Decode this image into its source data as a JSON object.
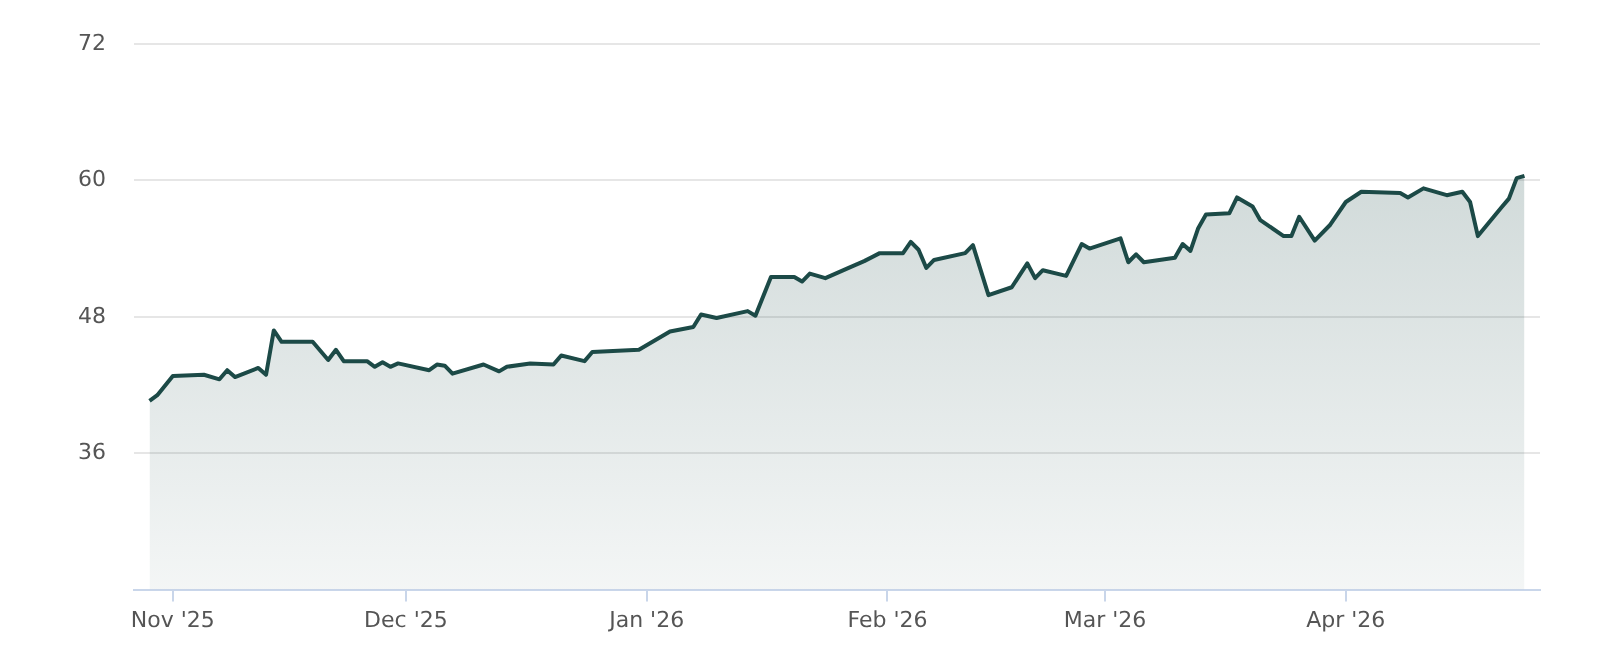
{
  "chart_data": {
    "type": "area",
    "x": [
      "2025-10-29",
      "2025-10-30",
      "2025-11-01",
      "2025-11-05",
      "2025-11-07",
      "2025-11-08",
      "2025-11-09",
      "2025-11-12",
      "2025-11-13",
      "2025-11-14",
      "2025-11-15",
      "2025-11-19",
      "2025-11-21",
      "2025-11-22",
      "2025-11-23",
      "2025-11-26",
      "2025-11-27",
      "2025-11-28",
      "2025-11-29",
      "2025-11-30",
      "2025-12-04",
      "2025-12-05",
      "2025-12-06",
      "2025-12-07",
      "2025-12-11",
      "2025-12-13",
      "2025-12-14",
      "2025-12-17",
      "2025-12-20",
      "2025-12-21",
      "2025-12-24",
      "2025-12-25",
      "2025-12-31",
      "2026-01-04",
      "2026-01-07",
      "2026-01-08",
      "2026-01-10",
      "2026-01-14",
      "2026-01-15",
      "2026-01-17",
      "2026-01-20",
      "2026-01-21",
      "2026-01-22",
      "2026-01-24",
      "2026-01-27",
      "2026-01-29",
      "2026-01-31",
      "2026-02-03",
      "2026-02-04",
      "2026-02-05",
      "2026-02-06",
      "2026-02-07",
      "2026-02-11",
      "2026-02-12",
      "2026-02-14",
      "2026-02-17",
      "2026-02-19",
      "2026-02-20",
      "2026-02-21",
      "2026-02-24",
      "2026-02-26",
      "2026-02-27",
      "2026-03-03",
      "2026-03-04",
      "2026-03-05",
      "2026-03-06",
      "2026-03-10",
      "2026-03-11",
      "2026-03-12",
      "2026-03-13",
      "2026-03-14",
      "2026-03-17",
      "2026-03-18",
      "2026-03-20",
      "2026-03-21",
      "2026-03-24",
      "2026-03-25",
      "2026-03-26",
      "2026-03-28",
      "2026-03-30",
      "2026-04-01",
      "2026-04-03",
      "2026-04-08",
      "2026-04-09",
      "2026-04-11",
      "2026-04-14",
      "2026-04-16",
      "2026-04-17",
      "2026-04-18",
      "2026-04-21",
      "2026-04-22",
      "2026-04-23",
      "2026-04-24"
    ],
    "series": [
      {
        "color": "#1c4a47",
        "values": [
          40.6,
          41.1,
          42.8,
          42.9,
          42.5,
          43.3,
          42.7,
          43.5,
          42.9,
          46.8,
          45.8,
          45.8,
          44.2,
          45.1,
          44.1,
          44.1,
          43.6,
          44.0,
          43.6,
          43.9,
          43.3,
          43.8,
          43.7,
          43.0,
          43.8,
          43.2,
          43.6,
          43.9,
          43.8,
          44.6,
          44.1,
          44.9,
          45.1,
          46.7,
          47.1,
          48.2,
          47.9,
          48.5,
          48.1,
          51.5,
          51.5,
          51.1,
          51.8,
          51.4,
          52.3,
          52.9,
          53.6,
          53.6,
          54.6,
          53.9,
          52.3,
          53.0,
          53.6,
          54.3,
          49.9,
          50.6,
          52.7,
          51.4,
          52.1,
          51.6,
          54.4,
          54.0,
          54.9,
          52.8,
          53.5,
          52.8,
          53.2,
          54.4,
          53.8,
          55.8,
          57.0,
          57.1,
          58.5,
          57.7,
          56.5,
          55.1,
          55.1,
          56.8,
          54.7,
          56.1,
          58.1,
          59.0,
          58.9,
          58.5,
          59.3,
          58.7,
          59.0,
          58.1,
          55.1,
          57.6,
          58.4,
          60.2,
          60.4
        ]
      }
    ],
    "xlim": [
      "2025-10-27",
      "2026-04-26"
    ],
    "xticks": [
      {
        "value": "2025-11-01",
        "label": "Nov '25"
      },
      {
        "value": "2025-12-01",
        "label": "Dec '25"
      },
      {
        "value": "2026-01-01",
        "label": "Jan '26"
      },
      {
        "value": "2026-02-01",
        "label": "Feb '26"
      },
      {
        "value": "2026-03-01",
        "label": "Mar '26"
      },
      {
        "value": "2026-04-01",
        "label": "Apr '26"
      }
    ],
    "ylim": [
      24,
      72
    ],
    "yticks": [
      {
        "value": 24,
        "label": null
      },
      36,
      48,
      60,
      72
    ],
    "grid": "y",
    "marker": "none",
    "line_style": "solid"
  }
}
